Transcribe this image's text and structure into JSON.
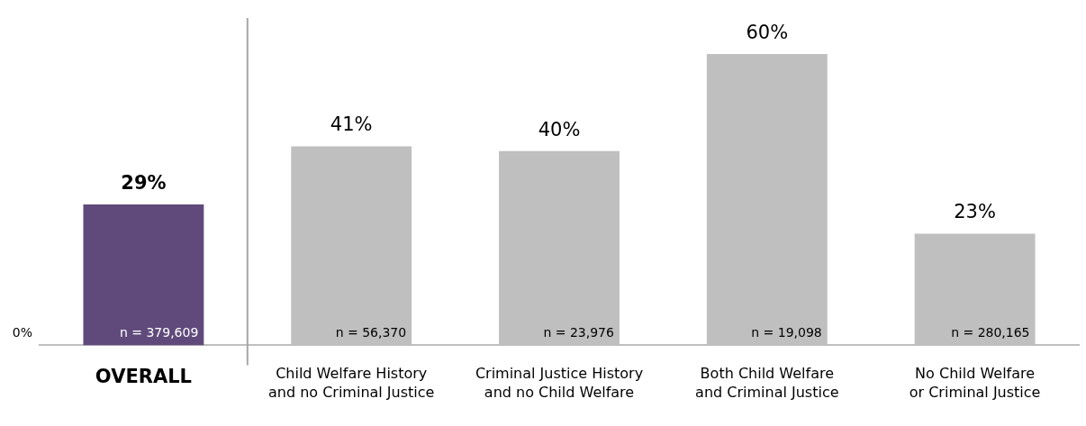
{
  "chart_data": {
    "type": "bar",
    "categories": [
      "OVERALL",
      "Child Welfare History and no Criminal Justice",
      "Criminal Justice History and no Child Welfare",
      "Both Child Welfare and Criminal Justice",
      "No Child Welfare or Criminal Justice"
    ],
    "values": [
      29,
      41,
      40,
      60,
      23
    ],
    "colors": [
      "#604a7b",
      "#bfbfbf",
      "#bfbfbf",
      "#bfbfbf",
      "#bfbfbf"
    ],
    "value_labels": [
      "29%",
      "41%",
      "40%",
      "60%",
      "23%"
    ],
    "grid": false,
    "legend": false,
    "annotations": [
      "0%",
      {
        "text": "n = 379,609",
        "x": "OVERALL",
        "y": 0
      },
      {
        "text": "n = 56,370",
        "x": "Child Welfare History and no Criminal Justice",
        "y": 0
      },
      {
        "text": "n = 23,976",
        "x": "Criminal Justice History and no Child Welfare",
        "y": 0
      },
      {
        "text": "n = 19,098",
        "x": "Both Child Welfare and Criminal Justice",
        "y": 0
      },
      {
        "text": "n = 280,165",
        "x": "No Child Welfare or Criminal Justice",
        "y": 0
      }
    ]
  }
}
